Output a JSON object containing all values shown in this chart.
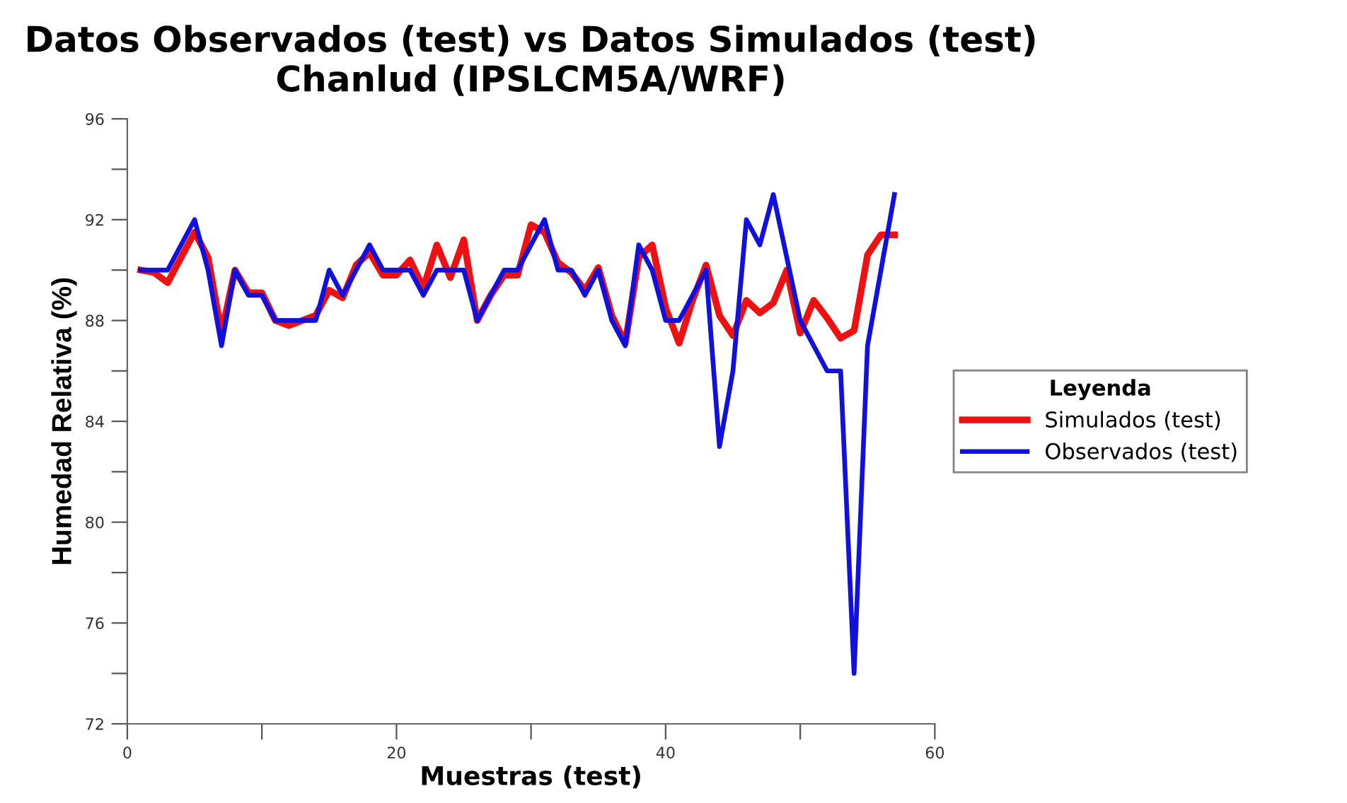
{
  "chart_data": {
    "type": "line",
    "title": "Datos Observados (test) vs Datos Simulados (test)\nChanlud (IPSLCM5A/WRF)",
    "xlabel": "Muestras (test)",
    "ylabel": "Humedad Relativa (%)",
    "legend_title": "Leyenda",
    "x": [
      1,
      2,
      3,
      4,
      5,
      6,
      7,
      8,
      9,
      10,
      11,
      12,
      13,
      14,
      15,
      16,
      17,
      18,
      19,
      20,
      21,
      22,
      23,
      24,
      25,
      26,
      27,
      28,
      29,
      30,
      31,
      32,
      33,
      34,
      35,
      36,
      37,
      38,
      39,
      40,
      41,
      42,
      43,
      44,
      45,
      46,
      47,
      48,
      49,
      50,
      51,
      52,
      53,
      54,
      55,
      56,
      57
    ],
    "series": [
      {
        "name": "Simulados (test)",
        "color": "#ee1111",
        "values": [
          90,
          89.9,
          89.5,
          90.5,
          91.5,
          90.5,
          87.5,
          90,
          89.1,
          89.1,
          88,
          87.8,
          88,
          88.2,
          89.2,
          88.9,
          90.2,
          90.7,
          89.8,
          89.8,
          90.4,
          89.3,
          91,
          89.7,
          91.2,
          88,
          89,
          89.8,
          89.8,
          91.8,
          91.5,
          90.3,
          89.9,
          89.2,
          90.1,
          88.2,
          87.1,
          90.5,
          91,
          88.5,
          87.1,
          88.8,
          90.2,
          88.2,
          87.4,
          88.8,
          88.3,
          88.7,
          90,
          87.5,
          88.8,
          88.1,
          87.3,
          87.6,
          90.6,
          91.4,
          91.4
        ]
      },
      {
        "name": "Observados (test)",
        "color": "#1111dd",
        "values": [
          90,
          90,
          90,
          91,
          92,
          90,
          87,
          90,
          89,
          89,
          88,
          88,
          88,
          88,
          90,
          89,
          90,
          91,
          90,
          90,
          90,
          89,
          90,
          90,
          90,
          88,
          89,
          90,
          90,
          91,
          92,
          90,
          90,
          89,
          90,
          88,
          87,
          91,
          90,
          88,
          88,
          89,
          90,
          83,
          86,
          92,
          91,
          93,
          90.5,
          88,
          87,
          86,
          86,
          74,
          87,
          90,
          93
        ]
      }
    ],
    "xlim": [
      0,
      60
    ],
    "xticks": [
      0,
      {
        "value": 10,
        "label": null
      },
      20,
      {
        "value": 30,
        "label": null
      },
      40,
      {
        "value": 50,
        "label": null
      },
      60
    ],
    "ylim": [
      72,
      96
    ],
    "yticks": [
      72,
      {
        "value": 74,
        "label": null
      },
      76,
      {
        "value": 78,
        "label": null
      },
      80,
      {
        "value": 82,
        "label": null
      },
      84,
      {
        "value": 86,
        "label": null
      },
      88,
      {
        "value": 90,
        "label": null
      },
      92,
      {
        "value": 94,
        "label": null
      },
      96
    ],
    "grid": false,
    "legend": "right",
    "marker": "none",
    "line_style": "solid"
  }
}
